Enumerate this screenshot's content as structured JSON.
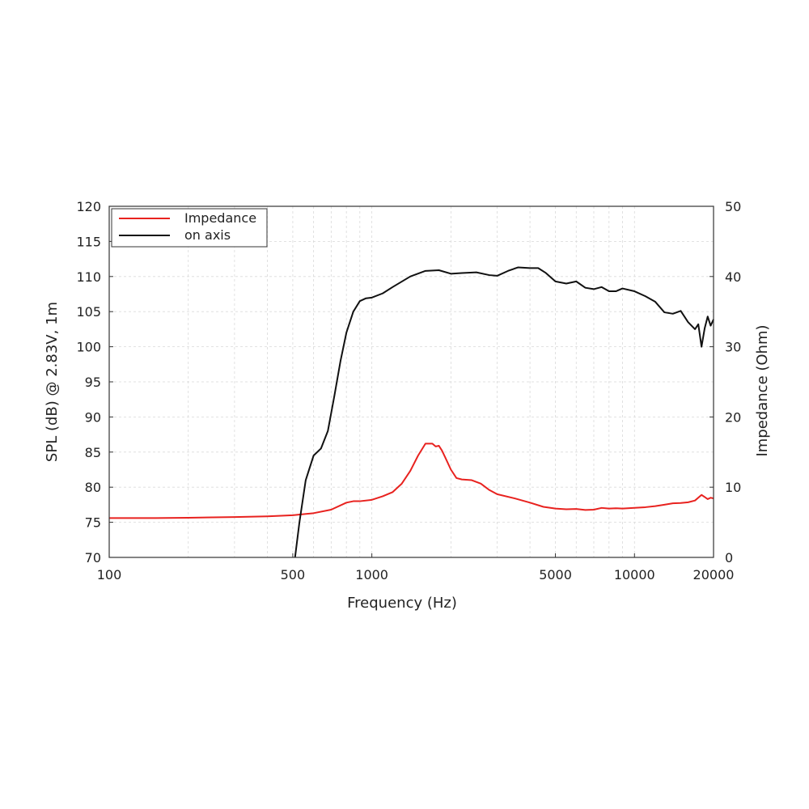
{
  "chart_data": {
    "type": "line",
    "xlabel": "Frequency (Hz)",
    "ylabel": "SPL (dB) @ 2.83V, 1m",
    "y2label": "Impedance (Ohm)",
    "x_scale": "log",
    "xlim": [
      100,
      20000
    ],
    "ylim": [
      70,
      120
    ],
    "y2lim": [
      0,
      50
    ],
    "xticks": [
      "100",
      "500",
      "1000",
      "5000",
      "10000",
      "20000"
    ],
    "yticks": [
      "70",
      "75",
      "80",
      "85",
      "90",
      "95",
      "100",
      "105",
      "110",
      "115",
      "120"
    ],
    "y2ticks": [
      "0",
      "10",
      "20",
      "30",
      "40",
      "50"
    ],
    "grid": true,
    "legend_position": "top-left",
    "series": [
      {
        "name": "Impedance",
        "axis": "right",
        "color": "#e8221f",
        "x": [
          100,
          150,
          200,
          300,
          400,
          500,
          600,
          700,
          800,
          850,
          900,
          1000,
          1100,
          1200,
          1300,
          1400,
          1500,
          1600,
          1700,
          1750,
          1800,
          1850,
          1900,
          2000,
          2100,
          2200,
          2400,
          2600,
          2800,
          3000,
          3500,
          4000,
          4500,
          5000,
          5500,
          6000,
          6500,
          7000,
          7500,
          8000,
          8500,
          9000,
          10000,
          11000,
          12000,
          13000,
          14000,
          15000,
          16000,
          17000,
          18000,
          18500,
          19000,
          19500,
          20000
        ],
        "y": [
          5.6,
          5.6,
          5.65,
          5.75,
          5.85,
          6.0,
          6.3,
          6.8,
          7.8,
          8.0,
          8.0,
          8.2,
          8.7,
          9.3,
          10.5,
          12.3,
          14.5,
          16.2,
          16.2,
          15.8,
          15.9,
          15.2,
          14.3,
          12.5,
          11.3,
          11.1,
          11.0,
          10.5,
          9.6,
          9.0,
          8.4,
          7.8,
          7.2,
          6.95,
          6.85,
          6.9,
          6.75,
          6.8,
          7.05,
          6.95,
          7.0,
          6.95,
          7.05,
          7.15,
          7.3,
          7.5,
          7.7,
          7.75,
          7.85,
          8.1,
          8.9,
          8.6,
          8.3,
          8.5,
          8.4
        ]
      },
      {
        "name": "on axis",
        "axis": "left",
        "color": "#111111",
        "x": [
          510,
          530,
          560,
          600,
          640,
          680,
          720,
          760,
          800,
          850,
          900,
          950,
          1000,
          1100,
          1200,
          1400,
          1600,
          1800,
          2000,
          2200,
          2500,
          2800,
          3000,
          3300,
          3600,
          4000,
          4300,
          4600,
          5000,
          5500,
          6000,
          6500,
          7000,
          7500,
          8000,
          8500,
          9000,
          10000,
          11000,
          12000,
          13000,
          14000,
          15000,
          16000,
          17000,
          17500,
          18000,
          18500,
          19000,
          19500,
          20000
        ],
        "y": [
          70.0,
          75.0,
          81.0,
          84.5,
          85.5,
          88.0,
          93.0,
          98.0,
          102.0,
          105.0,
          106.5,
          106.9,
          107.0,
          107.6,
          108.5,
          110.0,
          110.8,
          110.9,
          110.4,
          110.5,
          110.6,
          110.2,
          110.1,
          110.8,
          111.3,
          111.2,
          111.2,
          110.5,
          109.3,
          109.0,
          109.3,
          108.4,
          108.2,
          108.5,
          107.9,
          107.9,
          108.3,
          107.9,
          107.2,
          106.4,
          104.9,
          104.7,
          105.1,
          103.5,
          102.5,
          103.2,
          100.0,
          102.6,
          104.3,
          103.0,
          103.9
        ]
      }
    ]
  }
}
